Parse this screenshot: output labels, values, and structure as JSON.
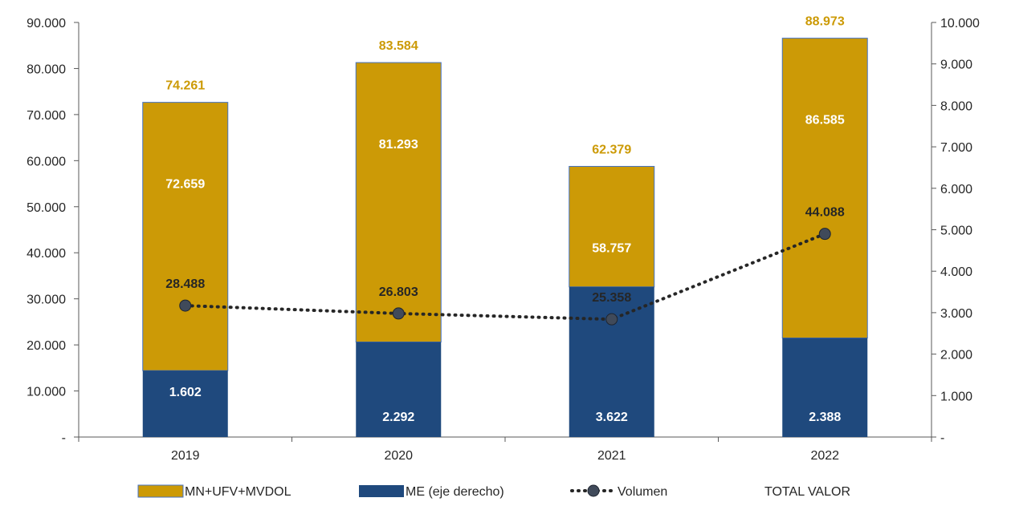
{
  "chart_data": {
    "type": "bar",
    "categories": [
      "2019",
      "2020",
      "2021",
      "2022"
    ],
    "series": [
      {
        "name": "MN+UFV+MVDOL",
        "kind": "stacked-bar",
        "axis": "left",
        "values": [
          72659,
          81293,
          58757,
          86585
        ],
        "labels": [
          "72.659",
          "81.293",
          "58.757",
          "86.585"
        ],
        "color": "#cc9a06"
      },
      {
        "name": "ME (eje derecho)",
        "kind": "stacked-bar",
        "axis": "right",
        "values": [
          1602,
          2292,
          3622,
          2388
        ],
        "labels": [
          "1.602",
          "2.292",
          "3.622",
          "2.388"
        ],
        "color": "#1f497d"
      },
      {
        "name": "Volumen",
        "kind": "line",
        "axis": "right",
        "values": [
          3170,
          2980,
          2840,
          4900
        ],
        "labels": [
          "28.488",
          "26.803",
          "25.358",
          "44.088"
        ],
        "color": "#262626"
      },
      {
        "name": "TOTAL VALOR",
        "kind": "label",
        "values": [
          74261,
          83584,
          62379,
          88973
        ],
        "labels": [
          "74.261",
          "83.584",
          "62.379",
          "88.973"
        ],
        "color": "#cc9a06"
      }
    ],
    "y_left": {
      "ylim": [
        0,
        90000
      ],
      "ticks": [
        "-",
        "10.000",
        "20.000",
        "30.000",
        "40.000",
        "50.000",
        "60.000",
        "70.000",
        "80.000",
        "90.000"
      ]
    },
    "y_right": {
      "ylim": [
        0,
        10000
      ],
      "ticks": [
        "-",
        "1.000",
        "2.000",
        "3.000",
        "4.000",
        "5.000",
        "6.000",
        "7.000",
        "8.000",
        "9.000",
        "10.000"
      ]
    },
    "legend_position": "bottom",
    "grid": false
  }
}
